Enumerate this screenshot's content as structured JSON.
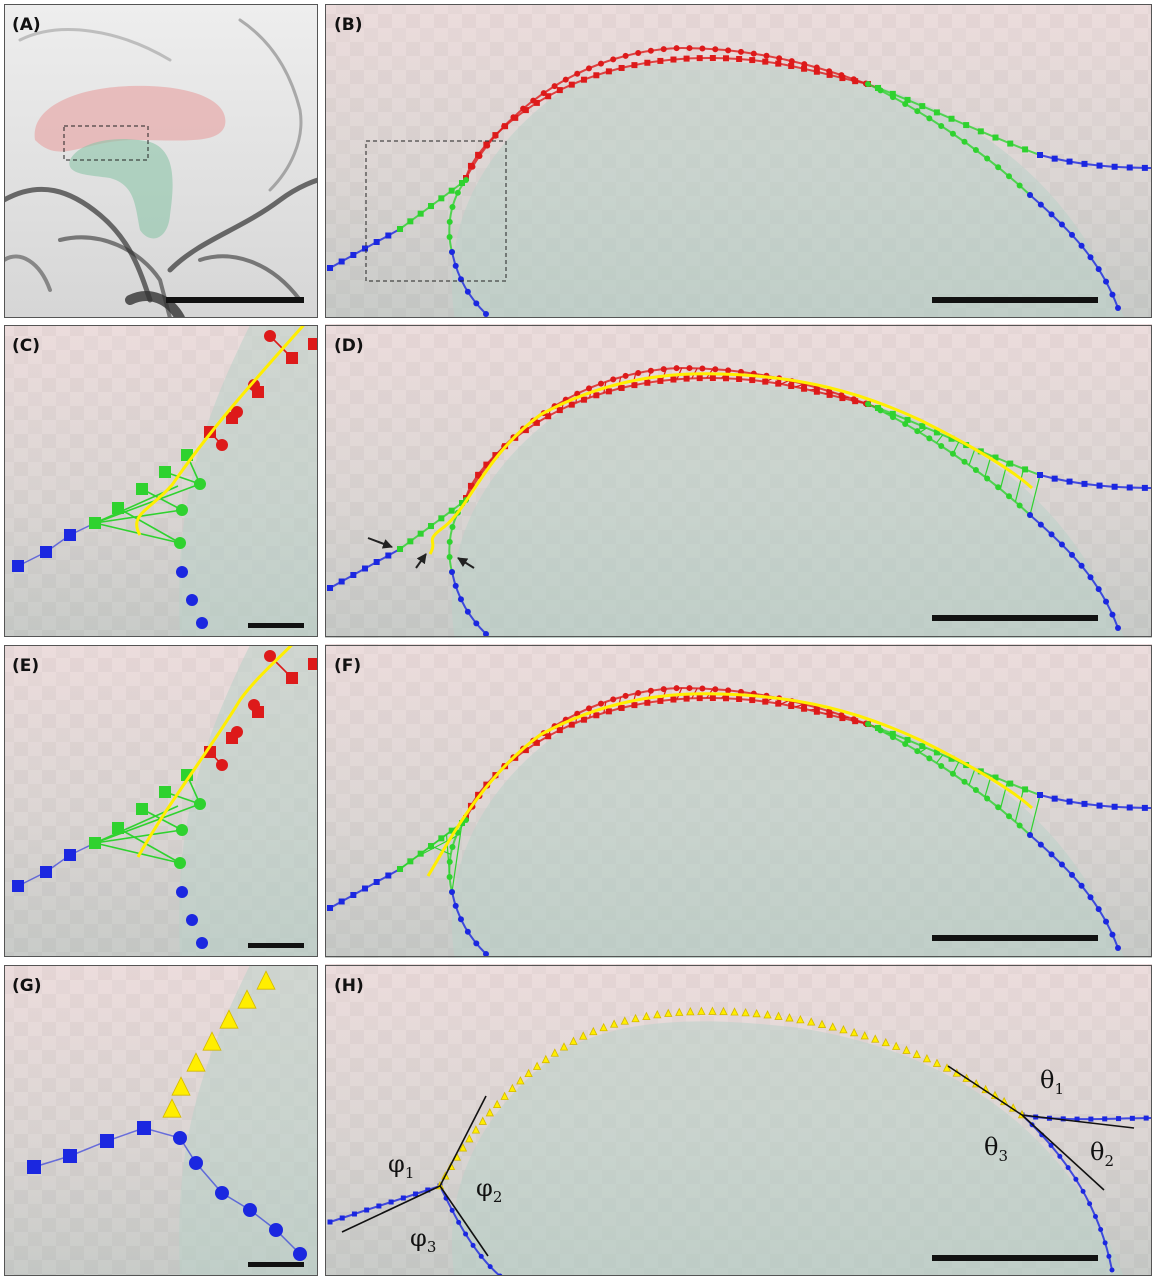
{
  "panels": [
    {
      "label": "(A)"
    },
    {
      "label": "(B)"
    },
    {
      "label": "(C)"
    },
    {
      "label": "(D)"
    },
    {
      "label": "(E)"
    },
    {
      "label": "(F)"
    },
    {
      "label": "(G)"
    },
    {
      "label": "(H)"
    }
  ],
  "angles": [
    {
      "symbol": "φ",
      "subscript": "1"
    },
    {
      "symbol": "φ",
      "subscript": "2"
    },
    {
      "symbol": "φ",
      "subscript": "3"
    },
    {
      "symbol": "θ",
      "subscript": "1"
    },
    {
      "symbol": "θ",
      "subscript": "2"
    },
    {
      "symbol": "θ",
      "subscript": "3"
    }
  ]
}
